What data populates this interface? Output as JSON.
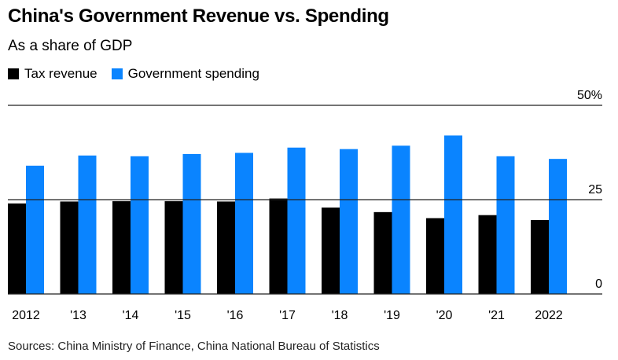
{
  "title": "China's Government Revenue vs. Spending",
  "subtitle": "As a share of GDP",
  "source": "Sources: China Ministry of Finance, China National Bureau of Statistics",
  "legend": [
    {
      "label": "Tax revenue",
      "color": "#000000"
    },
    {
      "label": "Government spending",
      "color": "#0a84ff"
    }
  ],
  "chart_data": {
    "type": "bar",
    "title": "China's Government Revenue vs. Spending",
    "subtitle": "As a share of GDP",
    "categories": [
      "2012",
      "'13",
      "'14",
      "'15",
      "'16",
      "'17",
      "'18",
      "'19",
      "'20",
      "'21",
      "2022"
    ],
    "series": [
      {
        "name": "Tax revenue",
        "color": "#000000",
        "values": [
          24.0,
          24.5,
          24.6,
          24.6,
          24.5,
          25.3,
          22.9,
          21.7,
          20.1,
          20.9,
          19.6
        ]
      },
      {
        "name": "Government spending",
        "color": "#0a84ff",
        "values": [
          34.0,
          36.7,
          36.5,
          37.1,
          37.4,
          38.8,
          38.4,
          39.3,
          42.0,
          36.5,
          35.8
        ]
      }
    ],
    "ylim": [
      0,
      50
    ],
    "yticks": [
      {
        "value": 0,
        "label": "0"
      },
      {
        "value": 25,
        "label": "25"
      },
      {
        "value": 50,
        "label": "50%"
      }
    ],
    "xlabel": "",
    "ylabel": "",
    "grid": true,
    "legend_position": "top-left"
  }
}
